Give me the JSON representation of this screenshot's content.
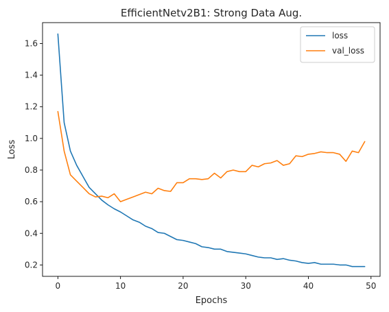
{
  "chart_data": {
    "type": "line",
    "title": "EfficientNetv2B1: Strong Data Aug.",
    "xlabel": "Epochs",
    "ylabel": "Loss",
    "xlim": [
      -2.45,
      51.45
    ],
    "ylim": [
      0.128,
      1.732
    ],
    "xticks": [
      0,
      10,
      20,
      30,
      40,
      50
    ],
    "yticks": [
      0.2,
      0.4,
      0.6,
      0.8,
      1.0,
      1.2,
      1.4,
      1.6
    ],
    "ytick_labels": [
      "0.2",
      "0.4",
      "0.6",
      "0.8",
      "1.0",
      "1.2",
      "1.4",
      "1.6"
    ],
    "grid": false,
    "legend_position": "top-right",
    "x": [
      0,
      1,
      2,
      3,
      4,
      5,
      6,
      7,
      8,
      9,
      10,
      11,
      12,
      13,
      14,
      15,
      16,
      17,
      18,
      19,
      20,
      21,
      22,
      23,
      24,
      25,
      26,
      27,
      28,
      29,
      30,
      31,
      32,
      33,
      34,
      35,
      36,
      37,
      38,
      39,
      40,
      41,
      42,
      43,
      44,
      45,
      46,
      47,
      48,
      49
    ],
    "series": [
      {
        "name": "loss",
        "color": "#1f77b4",
        "values": [
          1.66,
          1.1,
          0.92,
          0.83,
          0.76,
          0.69,
          0.65,
          0.61,
          0.58,
          0.555,
          0.535,
          0.51,
          0.485,
          0.47,
          0.445,
          0.43,
          0.405,
          0.4,
          0.38,
          0.36,
          0.355,
          0.345,
          0.335,
          0.315,
          0.31,
          0.3,
          0.3,
          0.285,
          0.28,
          0.275,
          0.27,
          0.26,
          0.25,
          0.245,
          0.245,
          0.235,
          0.24,
          0.23,
          0.225,
          0.215,
          0.21,
          0.215,
          0.205,
          0.205,
          0.205,
          0.2,
          0.2,
          0.19,
          0.19,
          0.19
        ]
      },
      {
        "name": "val_loss",
        "color": "#ff7f0e",
        "values": [
          1.17,
          0.92,
          0.77,
          0.73,
          0.69,
          0.65,
          0.63,
          0.635,
          0.625,
          0.65,
          0.6,
          0.615,
          0.63,
          0.645,
          0.66,
          0.65,
          0.685,
          0.67,
          0.665,
          0.72,
          0.72,
          0.745,
          0.745,
          0.74,
          0.745,
          0.78,
          0.75,
          0.79,
          0.8,
          0.79,
          0.79,
          0.83,
          0.82,
          0.84,
          0.845,
          0.86,
          0.83,
          0.84,
          0.89,
          0.885,
          0.9,
          0.905,
          0.915,
          0.91,
          0.91,
          0.9,
          0.855,
          0.92,
          0.91,
          0.98
        ]
      }
    ]
  }
}
